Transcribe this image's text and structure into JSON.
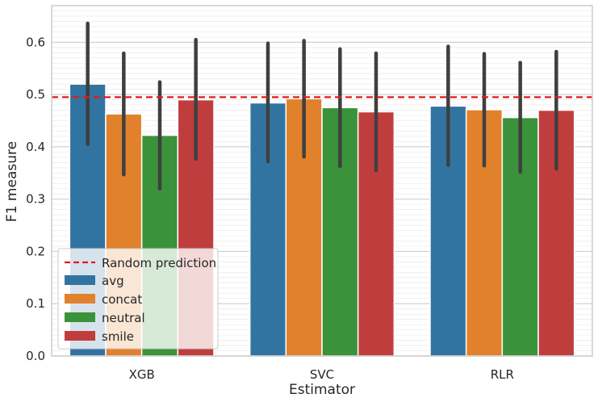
{
  "chart_data": {
    "type": "bar",
    "xlabel": "Estimator",
    "ylabel": "F1 measure",
    "categories": [
      "XGB",
      "SVC",
      "RLR"
    ],
    "ylim": [
      0,
      0.67
    ],
    "yticks": [
      "0.0",
      "0.1",
      "0.2",
      "0.3",
      "0.4",
      "0.5",
      "0.6"
    ],
    "grid": true,
    "series": [
      {
        "name": "avg",
        "color": "#3274a1",
        "values": [
          0.52,
          0.484,
          0.478
        ],
        "ci_low": [
          0.405,
          0.372,
          0.365
        ],
        "ci_high": [
          0.636,
          0.598,
          0.592
        ]
      },
      {
        "name": "concat",
        "color": "#e1812c",
        "values": [
          0.463,
          0.492,
          0.471
        ],
        "ci_low": [
          0.347,
          0.381,
          0.364
        ],
        "ci_high": [
          0.579,
          0.603,
          0.578
        ]
      },
      {
        "name": "neutral",
        "color": "#3a923a",
        "values": [
          0.422,
          0.475,
          0.456
        ],
        "ci_low": [
          0.32,
          0.363,
          0.352
        ],
        "ci_high": [
          0.524,
          0.587,
          0.561
        ]
      },
      {
        "name": "smile",
        "color": "#c03d3e",
        "values": [
          0.49,
          0.467,
          0.47
        ],
        "ci_low": [
          0.377,
          0.355,
          0.358
        ],
        "ci_high": [
          0.605,
          0.579,
          0.582
        ]
      }
    ],
    "reference_line": {
      "label": "Random prediction",
      "value": 0.495,
      "color": "#e31a1c"
    },
    "legend_position": "lower-left"
  }
}
